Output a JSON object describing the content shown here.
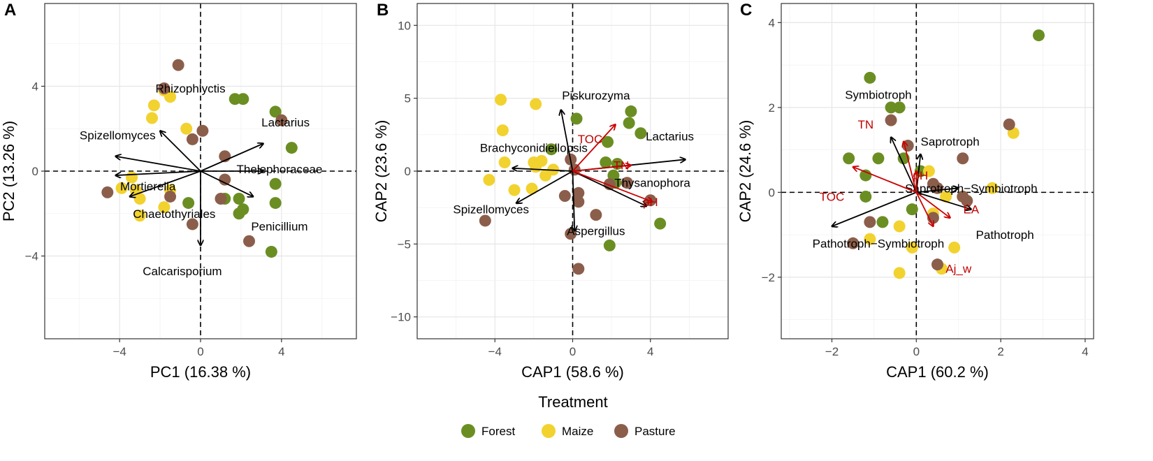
{
  "colors": {
    "Forest": "#6b8e23",
    "Maize": "#f2d22e",
    "Pasture": "#8b5e4b",
    "arrow": "#000000",
    "env_arrow": "#cc0000"
  },
  "legend": {
    "title": "Treatment",
    "items": [
      {
        "label": "Forest",
        "color": "#6b8e23"
      },
      {
        "label": "Maize",
        "color": "#f2d22e"
      },
      {
        "label": "Pasture",
        "color": "#8b5e4b"
      }
    ]
  },
  "chart_data": [
    {
      "panel": "A",
      "type": "scatter",
      "xlabel": "PC1 (16.38 %)",
      "ylabel": "PC2 (13.26 %)",
      "xlim": [
        -7.7,
        7.7
      ],
      "ylim": [
        -7.9,
        7.9
      ],
      "xticks": [
        -4,
        0,
        4
      ],
      "yticks": [
        -4,
        0,
        4
      ],
      "xtick_labels": [
        "−4",
        "0",
        "4"
      ],
      "ytick_labels": [
        "−4",
        "0",
        "4"
      ],
      "points": {
        "Forest": [
          [
            3.7,
            2.8
          ],
          [
            4.5,
            1.1
          ],
          [
            3.7,
            -0.6
          ],
          [
            3.7,
            -1.5
          ],
          [
            1.7,
            3.4
          ],
          [
            2.1,
            3.4
          ],
          [
            1.2,
            -1.3
          ],
          [
            1.9,
            -1.3
          ],
          [
            2.1,
            -1.8
          ],
          [
            1.9,
            -2.0
          ],
          [
            3.5,
            -3.8
          ],
          [
            -0.6,
            -1.5
          ]
        ],
        "Maize": [
          [
            -2.3,
            3.1
          ],
          [
            -2.4,
            2.5
          ],
          [
            -1.5,
            3.5
          ],
          [
            -1.8,
            3.8
          ],
          [
            -0.7,
            2.0
          ],
          [
            -3.4,
            -0.3
          ],
          [
            -3.2,
            -0.9
          ],
          [
            -3.9,
            -0.8
          ],
          [
            -3.0,
            -1.3
          ],
          [
            -3.0,
            -2.1
          ],
          [
            -1.8,
            -1.7
          ],
          [
            -1.5,
            -0.9
          ]
        ],
        "Pasture": [
          [
            -1.1,
            5.0
          ],
          [
            -1.8,
            3.9
          ],
          [
            4.0,
            2.4
          ],
          [
            0.1,
            1.9
          ],
          [
            -0.4,
            1.5
          ],
          [
            1.2,
            0.7
          ],
          [
            1.2,
            -0.4
          ],
          [
            1.0,
            -1.3
          ],
          [
            -4.6,
            -1.0
          ],
          [
            -1.5,
            -1.2
          ],
          [
            -0.4,
            -2.5
          ],
          [
            2.4,
            -3.3
          ]
        ]
      },
      "species_arrows": [
        {
          "name": "Rhizophlyctis",
          "end": [
            -2.0,
            1.9
          ],
          "label_at": [
            -0.5,
            3.9
          ]
        },
        {
          "name": "Spizellomyces",
          "end": [
            -4.2,
            0.7
          ],
          "label_at": [
            -4.1,
            1.7
          ]
        },
        {
          "name": "Mortierella",
          "end": [
            -4.2,
            -0.2
          ],
          "label_at": [
            -2.6,
            -0.7
          ]
        },
        {
          "name": "Chaetothyriales",
          "end": [
            -3.5,
            -1.2
          ],
          "label_at": [
            -1.3,
            -2.0
          ]
        },
        {
          "name": "Calcarisporium",
          "end": [
            0.0,
            -3.5
          ],
          "label_at": [
            -0.9,
            -4.7
          ]
        },
        {
          "name": "Penicillium",
          "end": [
            2.6,
            -1.2
          ],
          "label_at": [
            3.9,
            -2.6
          ]
        },
        {
          "name": "Thelephoraceae",
          "end": [
            3.1,
            0.0
          ],
          "label_at": [
            3.9,
            0.1
          ]
        },
        {
          "name": "Lactarius",
          "end": [
            3.1,
            1.3
          ],
          "label_at": [
            4.2,
            2.3
          ]
        }
      ]
    },
    {
      "panel": "B",
      "type": "scatter",
      "xlabel": "CAP1 (58.6 %)",
      "ylabel": "CAP2 (23.6 %)",
      "xlim": [
        -8.0,
        8.0
      ],
      "ylim": [
        -11.5,
        11.5
      ],
      "xticks": [
        -4,
        0,
        4
      ],
      "yticks": [
        -10,
        -5,
        0,
        5,
        10
      ],
      "xtick_labels": [
        "−4",
        "0",
        "4"
      ],
      "ytick_labels": [
        "−10",
        "−5",
        "0",
        "5",
        "10"
      ],
      "points": {
        "Forest": [
          [
            0.2,
            3.6
          ],
          [
            3.0,
            4.1
          ],
          [
            2.9,
            3.3
          ],
          [
            3.5,
            2.6
          ],
          [
            1.8,
            2.0
          ],
          [
            -1.1,
            1.5
          ],
          [
            1.7,
            0.6
          ],
          [
            2.3,
            0.5
          ],
          [
            2.1,
            -0.3
          ],
          [
            2.2,
            -0.8
          ],
          [
            4.5,
            -3.6
          ],
          [
            1.9,
            -5.1
          ]
        ],
        "Maize": [
          [
            -3.7,
            4.9
          ],
          [
            -1.9,
            4.6
          ],
          [
            -3.6,
            2.8
          ],
          [
            -3.5,
            0.6
          ],
          [
            -2.0,
            0.6
          ],
          [
            -1.6,
            0.7
          ],
          [
            -1.9,
            0.3
          ],
          [
            -1.0,
            0.1
          ],
          [
            -1.4,
            -0.3
          ],
          [
            -2.1,
            -1.2
          ],
          [
            -4.3,
            -0.6
          ],
          [
            -3.0,
            -1.3
          ]
        ],
        "Pasture": [
          [
            -0.1,
            0.8
          ],
          [
            0.1,
            0.1
          ],
          [
            2.8,
            -0.8
          ],
          [
            4.0,
            -2.0
          ],
          [
            1.9,
            -0.9
          ],
          [
            -0.4,
            -1.7
          ],
          [
            0.3,
            -1.5
          ],
          [
            0.3,
            -2.1
          ],
          [
            1.2,
            -3.0
          ],
          [
            -4.5,
            -3.4
          ],
          [
            -0.1,
            -4.3
          ],
          [
            0.3,
            -6.7
          ]
        ]
      },
      "species_arrows": [
        {
          "name": "Piskurozyma",
          "end": [
            -0.6,
            4.2
          ],
          "label_at": [
            1.2,
            5.2
          ]
        },
        {
          "name": "Brachyconidiellopsis",
          "end": [
            -3.1,
            0.2
          ],
          "label_at": [
            -2.0,
            1.6
          ]
        },
        {
          "name": "Spizellomyces",
          "end": [
            -2.9,
            -2.2
          ],
          "label_at": [
            -4.2,
            -2.6
          ]
        },
        {
          "name": "Aspergillus",
          "end": [
            0.1,
            -4.1
          ],
          "label_at": [
            1.2,
            -4.1
          ]
        },
        {
          "name": "Lactarius",
          "end": [
            5.8,
            0.8
          ],
          "label_at": [
            5.0,
            2.4
          ]
        },
        {
          "name": "Thysanophora",
          "end": [
            3.8,
            -2.4
          ],
          "label_at": [
            4.1,
            -0.8
          ]
        }
      ],
      "env_arrows": [
        {
          "name": "TOC",
          "end": [
            2.2,
            3.2
          ],
          "label_at": [
            0.9,
            2.2
          ]
        },
        {
          "name": "TN",
          "end": [
            3.0,
            0.4
          ],
          "label_at": [
            2.5,
            0.4
          ]
        },
        {
          "name": "pH",
          "end": [
            4.1,
            -2.1
          ],
          "label_at": [
            4.0,
            -2.1
          ]
        }
      ]
    },
    {
      "panel": "C",
      "type": "scatter",
      "xlabel": "CAP1 (60.2 %)",
      "ylabel": "CAP2 (24.6 %)",
      "xlim": [
        -3.2,
        4.2
      ],
      "ylim": [
        -3.45,
        4.45
      ],
      "xticks": [
        -2,
        0,
        2,
        4
      ],
      "yticks": [
        -2,
        0,
        2,
        4
      ],
      "xtick_labels": [
        "−2",
        "0",
        "2",
        "4"
      ],
      "ytick_labels": [
        "−2",
        "0",
        "2",
        "4"
      ],
      "points": {
        "Forest": [
          [
            2.9,
            3.7
          ],
          [
            -1.1,
            2.7
          ],
          [
            -0.6,
            2.0
          ],
          [
            -0.4,
            2.0
          ],
          [
            -1.6,
            0.8
          ],
          [
            -0.9,
            0.8
          ],
          [
            -0.3,
            0.8
          ],
          [
            -1.2,
            0.4
          ],
          [
            0.1,
            0.5
          ],
          [
            -1.2,
            -0.1
          ],
          [
            -0.8,
            -0.7
          ],
          [
            -0.1,
            -0.4
          ]
        ],
        "Maize": [
          [
            2.3,
            1.4
          ],
          [
            1.8,
            0.1
          ],
          [
            0.7,
            -0.1
          ],
          [
            1.1,
            -0.1
          ],
          [
            0.4,
            -0.5
          ],
          [
            -0.4,
            -0.8
          ],
          [
            -0.1,
            -1.3
          ],
          [
            -1.1,
            -1.1
          ],
          [
            0.9,
            -1.3
          ],
          [
            0.6,
            -1.8
          ],
          [
            -0.4,
            -1.9
          ],
          [
            0.3,
            0.5
          ]
        ],
        "Pasture": [
          [
            -0.2,
            1.1
          ],
          [
            -0.6,
            1.7
          ],
          [
            1.1,
            0.8
          ],
          [
            2.2,
            1.6
          ],
          [
            0.4,
            0.2
          ],
          [
            0.5,
            0.1
          ],
          [
            1.1,
            -0.1
          ],
          [
            1.2,
            -0.2
          ],
          [
            -1.1,
            -0.7
          ],
          [
            -1.5,
            -1.2
          ],
          [
            0.5,
            -1.7
          ],
          [
            0.4,
            -0.6
          ]
        ]
      },
      "species_arrows": [
        {
          "name": "Symbiotroph",
          "end": [
            -0.6,
            1.3
          ],
          "label_at": [
            -0.9,
            2.3
          ]
        },
        {
          "name": "Saprotroph",
          "end": [
            0.1,
            0.9
          ],
          "label_at": [
            0.8,
            1.2
          ]
        },
        {
          "name": "Saprotroph−Symbiotroph",
          "end": [
            1.0,
            0.1
          ],
          "label_at": [
            1.3,
            0.1
          ]
        },
        {
          "name": "Pathotroph",
          "end": [
            1.3,
            -0.4
          ],
          "label_at": [
            2.1,
            -1.0
          ]
        },
        {
          "name": "Pathotroph−Symbiotroph",
          "end": [
            -2.0,
            -0.8
          ],
          "label_at": [
            -0.9,
            -1.2
          ]
        }
      ],
      "env_arrows": [
        {
          "name": "TN",
          "end": [
            -0.3,
            1.2
          ],
          "label_at": [
            -1.2,
            1.6
          ]
        },
        {
          "name": "pH",
          "end": [
            0.0,
            0.5
          ],
          "label_at": [
            0.1,
            0.4
          ]
        },
        {
          "name": "TOC",
          "end": [
            -1.5,
            0.6
          ],
          "label_at": [
            -2.0,
            -0.1
          ]
        },
        {
          "name": "EA",
          "end": [
            0.8,
            -0.6
          ],
          "label_at": [
            1.3,
            -0.4
          ]
        },
        {
          "name": "Aj_w",
          "end": [
            0.4,
            -0.8
          ],
          "label_at": [
            1.0,
            -1.8
          ]
        }
      ]
    }
  ]
}
